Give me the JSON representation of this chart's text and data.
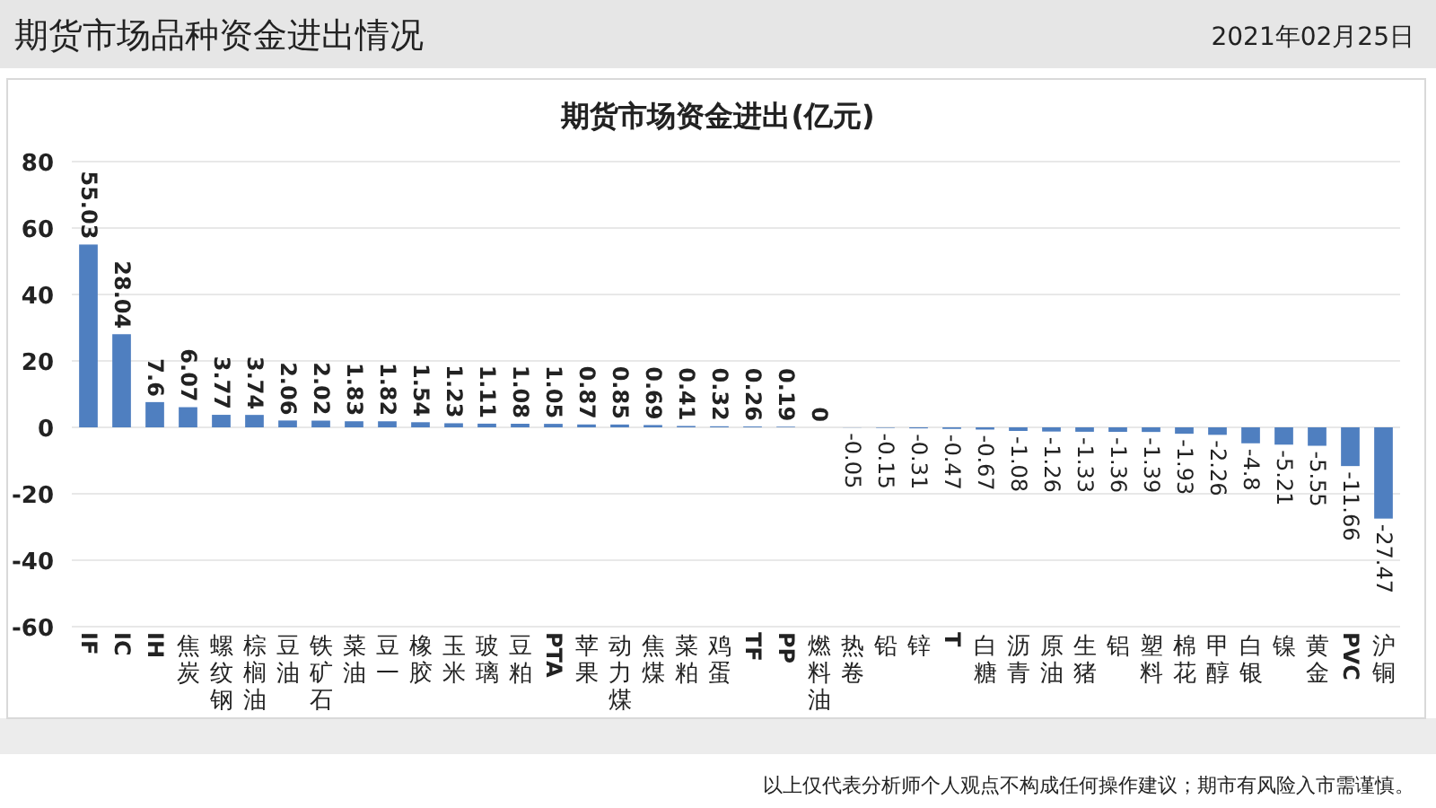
{
  "chart_data": {
    "type": "bar",
    "title": "期货市场资金进出(亿元)",
    "subtitle": "期货市场品种资金进出情况",
    "annotations": [
      "2021年02月25日",
      "以上仅代表分析师个人观点不构成任何操作建议；期市有风险入市需谨慎。"
    ],
    "categories": [
      "IF",
      "IC",
      "IH",
      "焦炭",
      "螺纹钢",
      "棕榈油",
      "豆油",
      "铁矿石",
      "菜油",
      "豆一",
      "橡胶",
      "玉米",
      "玻璃",
      "豆粕",
      "PTA",
      "苹果",
      "动力煤",
      "焦煤",
      "菜粕",
      "鸡蛋",
      "TF",
      "PP",
      "燃料油",
      "热卷",
      "铅",
      "锌",
      "T",
      "白糖",
      "沥青",
      "原油",
      "生猪",
      "铝",
      "塑料",
      "棉花",
      "甲醇",
      "白银",
      "镍",
      "黄金",
      "PVC",
      "沪铜"
    ],
    "values": [
      55.03,
      28.04,
      7.6,
      6.07,
      3.77,
      3.74,
      2.06,
      2.02,
      1.83,
      1.82,
      1.54,
      1.23,
      1.11,
      1.08,
      1.05,
      0.87,
      0.85,
      0.69,
      0.41,
      0.32,
      0.26,
      0.19,
      0,
      -0.05,
      -0.15,
      -0.31,
      -0.47,
      -0.67,
      -1.08,
      -1.26,
      -1.33,
      -1.36,
      -1.39,
      -1.93,
      -2.26,
      -4.8,
      -5.21,
      -5.55,
      -11.66,
      -27.47
    ],
    "color": "#4f7fc0",
    "ylim": [
      -60,
      80
    ],
    "yticks": [
      -60,
      -40,
      -20,
      0,
      20,
      40,
      60,
      80
    ],
    "grid": "y",
    "data_labels": true
  }
}
